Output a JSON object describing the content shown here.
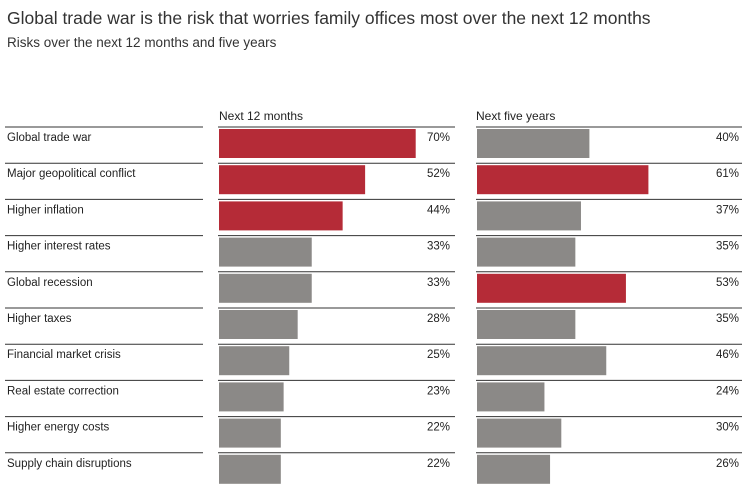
{
  "header": {
    "title": "Global trade war is the risk that worries family offices most over the next 12 months",
    "subtitle": "Risks over the next 12 months and five years"
  },
  "colors": {
    "highlight": "#b52b37",
    "bar": "#8b8987",
    "rule": "#333333"
  },
  "chart_data": {
    "type": "bar",
    "orientation": "horizontal",
    "categories": [
      "Global trade war",
      "Major geopolitical conflict",
      "Higher inflation",
      "Higher interest rates",
      "Global recession",
      "Higher taxes",
      "Financial market crisis",
      "Real estate correction",
      "Higher energy costs",
      "Supply chain disruptions"
    ],
    "series": [
      {
        "name": "Next 12 months",
        "values": [
          70,
          52,
          44,
          33,
          33,
          28,
          25,
          23,
          22,
          22
        ],
        "labels": [
          "70%",
          "52%",
          "44%",
          "33%",
          "33%",
          "28%",
          "25%",
          "23%",
          "22%",
          "22%"
        ],
        "highlighted": [
          true,
          true,
          true,
          false,
          false,
          false,
          false,
          false,
          false,
          false
        ]
      },
      {
        "name": "Next five years",
        "values": [
          40,
          61,
          37,
          35,
          53,
          35,
          46,
          24,
          30,
          26
        ],
        "labels": [
          "40%",
          "61%",
          "37%",
          "35%",
          "53%",
          "35%",
          "46%",
          "24%",
          "30%",
          "26%"
        ],
        "highlighted": [
          false,
          true,
          false,
          false,
          true,
          false,
          false,
          false,
          false,
          false
        ]
      }
    ],
    "unit": "%",
    "xlim": [
      0,
      100
    ],
    "grid": false,
    "legend": "none"
  }
}
